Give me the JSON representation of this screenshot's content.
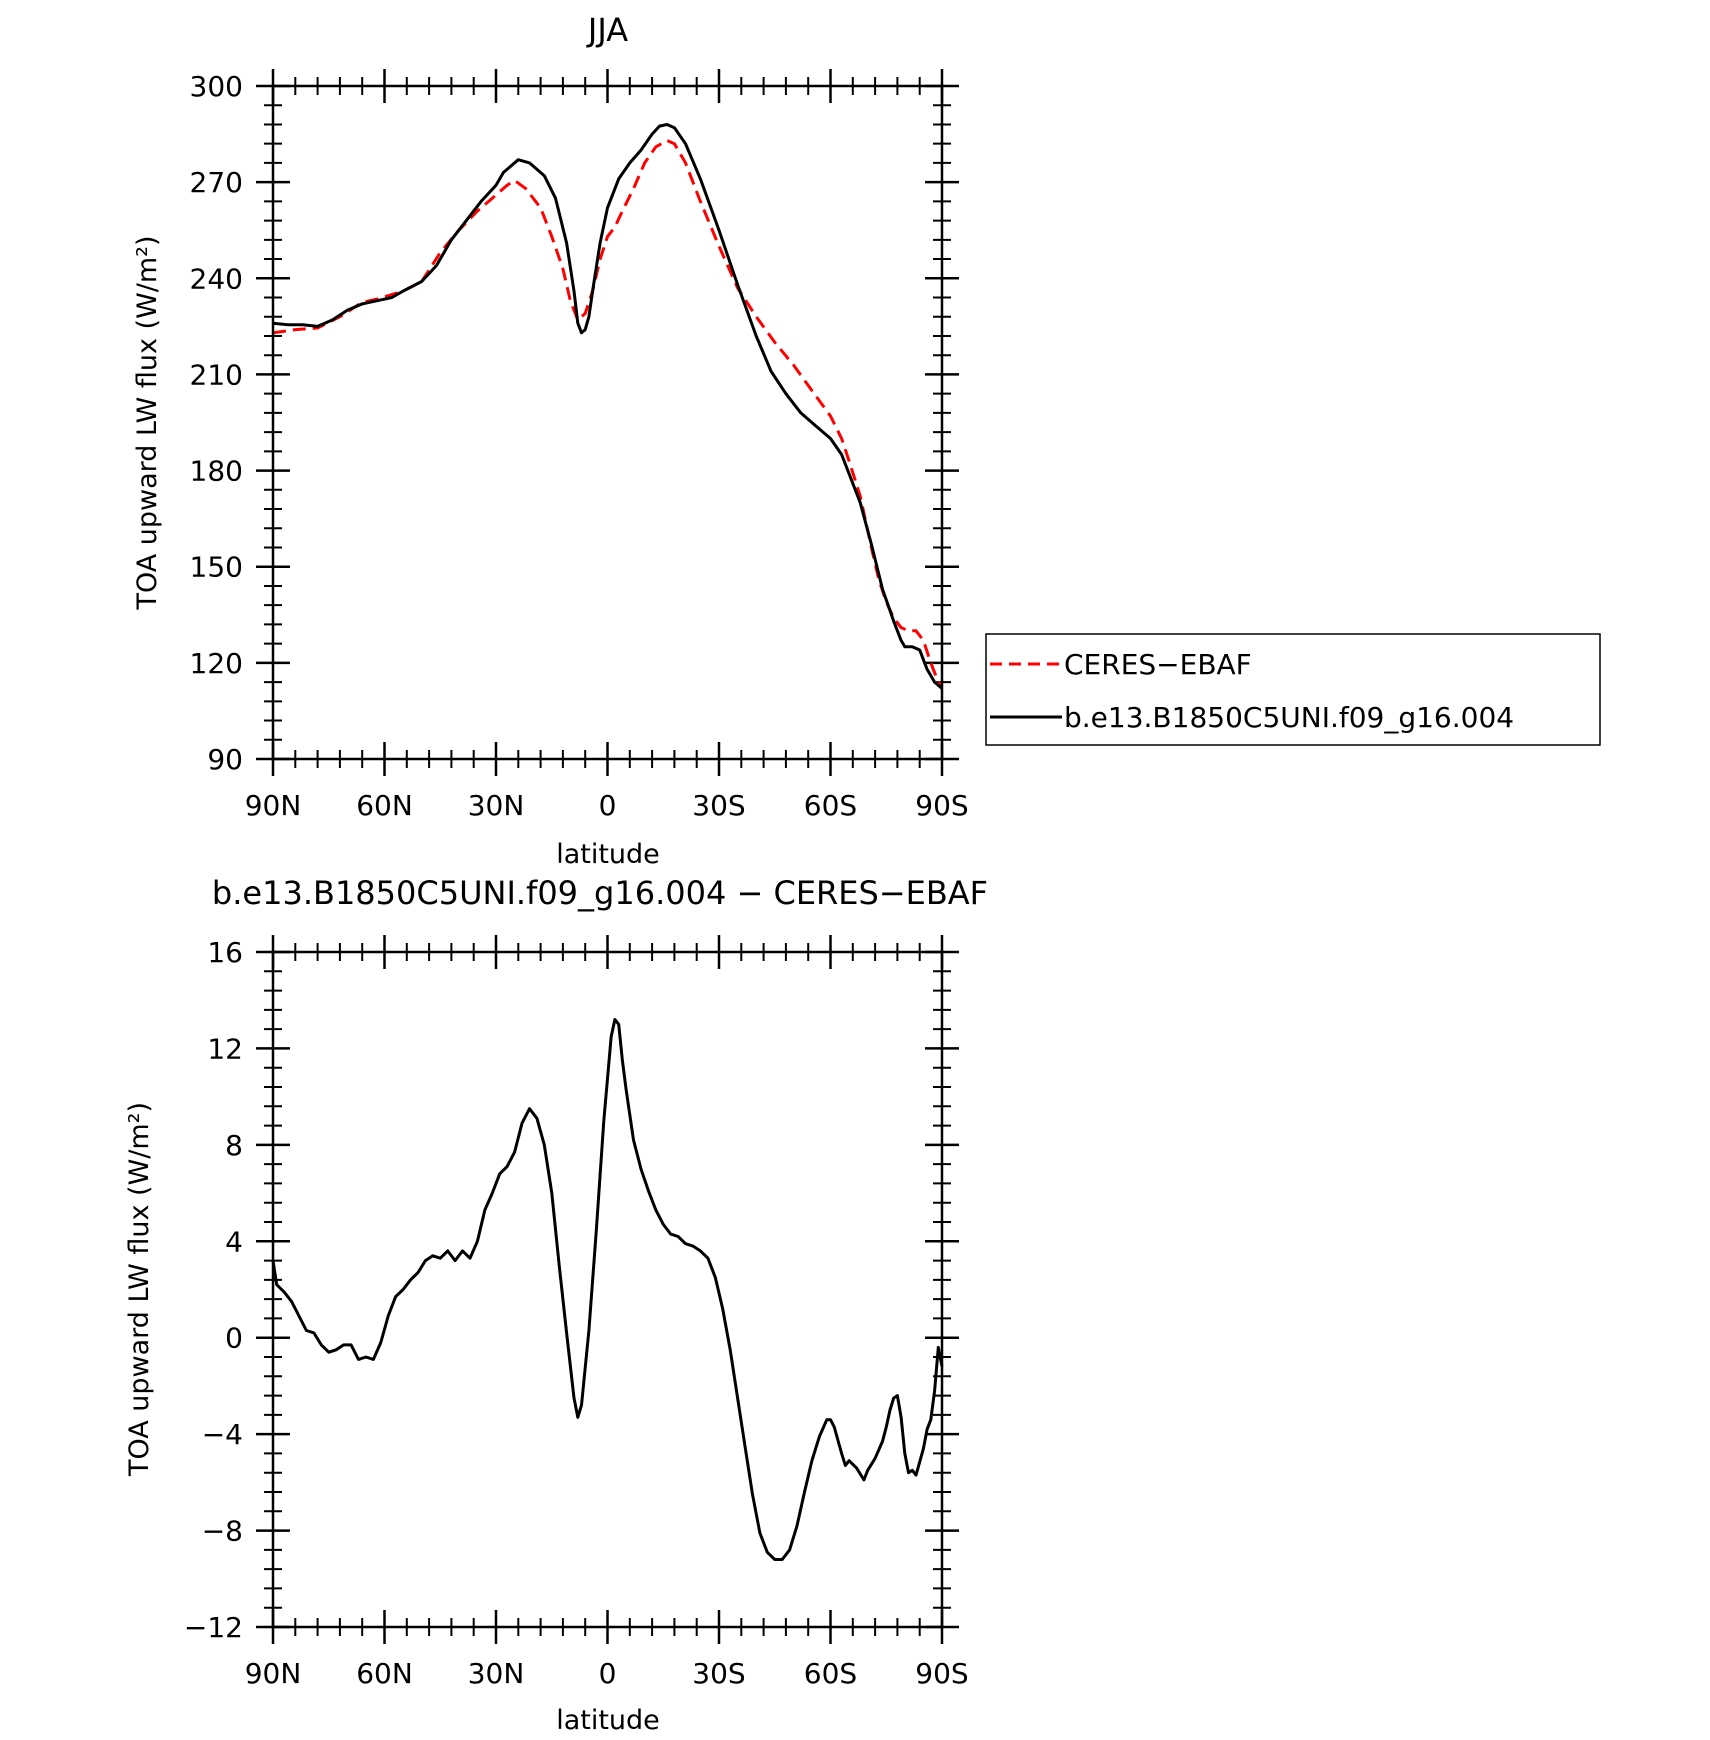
{
  "chart_data": [
    {
      "type": "line",
      "title": "JJA",
      "xlabel": "latitude",
      "ylabel": "TOA upward LW flux (W/m²)",
      "ylim": [
        90,
        300
      ],
      "xlim": [
        90,
        -90
      ],
      "y_ticks": [
        "90",
        "120",
        "150",
        "180",
        "210",
        "240",
        "270",
        "300"
      ],
      "x_tick_values": [
        90,
        60,
        30,
        0,
        -30,
        -60,
        -90
      ],
      "x_tick_labels": [
        "90N",
        "60N",
        "30N",
        "0",
        "30S",
        "60S",
        "90S"
      ],
      "legend": {
        "position": "right",
        "entries": [
          "CERES−EBAF",
          "b.e13.B1850C5UNI.f09_g16.004"
        ]
      },
      "series": [
        {
          "name": "CERES−EBAF",
          "color": "#ff0000",
          "style": "dashed",
          "points": [
            [
              90,
              223
            ],
            [
              84,
              224
            ],
            [
              78,
              224.5
            ],
            [
              72,
              228
            ],
            [
              66,
              232.5
            ],
            [
              62,
              233.5
            ],
            [
              55,
              236
            ],
            [
              50,
              239
            ],
            [
              45,
              248
            ],
            [
              40,
              255
            ],
            [
              35,
              261
            ],
            [
              30,
              266
            ],
            [
              27,
              269
            ],
            [
              25,
              270.5
            ],
            [
              22,
              268
            ],
            [
              18,
              262
            ],
            [
              15,
              253
            ],
            [
              12,
              243
            ],
            [
              10,
              233
            ],
            [
              8,
              227
            ],
            [
              6,
              229
            ],
            [
              4,
              236
            ],
            [
              2,
              246
            ],
            [
              0,
              253
            ],
            [
              -2,
              256
            ],
            [
              -4,
              261
            ],
            [
              -7,
              268
            ],
            [
              -10,
              276
            ],
            [
              -13,
              281
            ],
            [
              -16,
              283
            ],
            [
              -18,
              282
            ],
            [
              -21,
              276
            ],
            [
              -25,
              264
            ],
            [
              -30,
              250
            ],
            [
              -35,
              237
            ],
            [
              -40,
              228
            ],
            [
              -45,
              220
            ],
            [
              -50,
              213
            ],
            [
              -55,
              205
            ],
            [
              -60,
              197
            ],
            [
              -63,
              190
            ],
            [
              -65,
              183
            ],
            [
              -68,
              172
            ],
            [
              -71,
              156
            ],
            [
              -73,
              146
            ],
            [
              -75,
              139
            ],
            [
              -77,
              134
            ],
            [
              -79,
              131
            ],
            [
              -81,
              130
            ],
            [
              -83,
              130
            ],
            [
              -85,
              127
            ],
            [
              -87,
              120
            ],
            [
              -89,
              114
            ],
            [
              -90,
              113
            ]
          ]
        },
        {
          "name": "b.e13.B1850C5UNI.f09_g16.004",
          "color": "#000000",
          "style": "solid",
          "points": [
            [
              90,
              226
            ],
            [
              86,
              225.5
            ],
            [
              82,
              225.5
            ],
            [
              78,
              225
            ],
            [
              74,
              227
            ],
            [
              70,
              230
            ],
            [
              66,
              232
            ],
            [
              62,
              233
            ],
            [
              58,
              234
            ],
            [
              55,
              236
            ],
            [
              50,
              239
            ],
            [
              46,
              244
            ],
            [
              42,
              252
            ],
            [
              38,
              258
            ],
            [
              34,
              264
            ],
            [
              30,
              269
            ],
            [
              28,
              273
            ],
            [
              24,
              277
            ],
            [
              21,
              276
            ],
            [
              17,
              272
            ],
            [
              14,
              265
            ],
            [
              11,
              251
            ],
            [
              9,
              236
            ],
            [
              8,
              226
            ],
            [
              7,
              223
            ],
            [
              6,
              224
            ],
            [
              5,
              228
            ],
            [
              4,
              236
            ],
            [
              2,
              251
            ],
            [
              0,
              262
            ],
            [
              -3,
              271
            ],
            [
              -6,
              276
            ],
            [
              -9,
              280
            ],
            [
              -12,
              285
            ],
            [
              -14,
              287.5
            ],
            [
              -16,
              288
            ],
            [
              -18,
              287
            ],
            [
              -21,
              282
            ],
            [
              -25,
              271
            ],
            [
              -30,
              255
            ],
            [
              -35,
              238
            ],
            [
              -40,
              222
            ],
            [
              -44,
              211
            ],
            [
              -48,
              204
            ],
            [
              -52,
              198
            ],
            [
              -56,
              194
            ],
            [
              -60,
              190
            ],
            [
              -63,
              185
            ],
            [
              -65,
              179
            ],
            [
              -68,
              170
            ],
            [
              -71,
              157
            ],
            [
              -74,
              143
            ],
            [
              -77,
              133
            ],
            [
              -79,
              127
            ],
            [
              -80,
              125
            ],
            [
              -82,
              125
            ],
            [
              -84,
              124
            ],
            [
              -86,
              118
            ],
            [
              -88,
              114
            ],
            [
              -90,
              112
            ]
          ]
        }
      ]
    },
    {
      "type": "line",
      "title": "b.e13.B1850C5UNI.f09_g16.004 − CERES−EBAF",
      "xlabel": "latitude",
      "ylabel": "TOA upward LW flux (W/m²)",
      "ylim": [
        -12,
        16
      ],
      "xlim": [
        90,
        -90
      ],
      "y_ticks": [
        "−12",
        "−8",
        "−4",
        "0",
        "4",
        "8",
        "12",
        "16"
      ],
      "x_tick_values": [
        90,
        60,
        30,
        0,
        -30,
        -60,
        -90
      ],
      "x_tick_labels": [
        "90N",
        "60N",
        "30N",
        "0",
        "30S",
        "60S",
        "90S"
      ],
      "series": [
        {
          "color": "#000000",
          "style": "solid",
          "points": [
            [
              90,
              3.2
            ],
            [
              89,
              2.2
            ],
            [
              87,
              1.9
            ],
            [
              85,
              1.5
            ],
            [
              83,
              0.9
            ],
            [
              81,
              0.3
            ],
            [
              79,
              0.2
            ],
            [
              77,
              -0.3
            ],
            [
              75,
              -0.6
            ],
            [
              73,
              -0.5
            ],
            [
              71,
              -0.3
            ],
            [
              69,
              -0.3
            ],
            [
              67,
              -0.9
            ],
            [
              65,
              -0.8
            ],
            [
              63,
              -0.9
            ],
            [
              61,
              -0.2
            ],
            [
              59,
              0.9
            ],
            [
              57,
              1.7
            ],
            [
              55,
              2.0
            ],
            [
              53,
              2.4
            ],
            [
              51,
              2.7
            ],
            [
              49,
              3.2
            ],
            [
              47,
              3.4
            ],
            [
              45,
              3.3
            ],
            [
              43,
              3.6
            ],
            [
              41,
              3.2
            ],
            [
              39,
              3.6
            ],
            [
              37,
              3.3
            ],
            [
              35,
              4.0
            ],
            [
              33,
              5.3
            ],
            [
              31,
              6.0
            ],
            [
              29,
              6.8
            ],
            [
              27,
              7.1
            ],
            [
              25,
              7.7
            ],
            [
              23,
              8.9
            ],
            [
              21,
              9.5
            ],
            [
              19,
              9.1
            ],
            [
              17,
              8.0
            ],
            [
              15,
              6.0
            ],
            [
              13,
              3.0
            ],
            [
              11,
              0.2
            ],
            [
              9,
              -2.5
            ],
            [
              8,
              -3.3
            ],
            [
              7,
              -2.8
            ],
            [
              5,
              0.3
            ],
            [
              3,
              4.5
            ],
            [
              1,
              9.0
            ],
            [
              -1,
              12.5
            ],
            [
              -2,
              13.2
            ],
            [
              -3,
              13.0
            ],
            [
              -4,
              11.5
            ],
            [
              -5,
              10.3
            ],
            [
              -7,
              8.2
            ],
            [
              -9,
              7.0
            ],
            [
              -11,
              6.1
            ],
            [
              -13,
              5.3
            ],
            [
              -15,
              4.7
            ],
            [
              -17,
              4.3
            ],
            [
              -19,
              4.2
            ],
            [
              -21,
              3.9
            ],
            [
              -23,
              3.8
            ],
            [
              -25,
              3.6
            ],
            [
              -27,
              3.3
            ],
            [
              -29,
              2.5
            ],
            [
              -31,
              1.2
            ],
            [
              -33,
              -0.5
            ],
            [
              -35,
              -2.5
            ],
            [
              -37,
              -4.5
            ],
            [
              -39,
              -6.5
            ],
            [
              -41,
              -8.1
            ],
            [
              -43,
              -8.9
            ],
            [
              -45,
              -9.2
            ],
            [
              -47,
              -9.2
            ],
            [
              -49,
              -8.8
            ],
            [
              -51,
              -7.8
            ],
            [
              -53,
              -6.4
            ],
            [
              -55,
              -5.1
            ],
            [
              -57,
              -4.1
            ],
            [
              -59,
              -3.4
            ],
            [
              -60,
              -3.4
            ],
            [
              -61,
              -3.7
            ],
            [
              -63,
              -4.8
            ],
            [
              -64,
              -5.3
            ],
            [
              -65,
              -5.1
            ],
            [
              -67,
              -5.4
            ],
            [
              -69,
              -5.9
            ],
            [
              -70,
              -5.5
            ],
            [
              -72,
              -5.0
            ],
            [
              -74,
              -4.3
            ],
            [
              -75,
              -3.7
            ],
            [
              -76,
              -3.0
            ],
            [
              -77,
              -2.5
            ],
            [
              -78,
              -2.4
            ],
            [
              -79,
              -3.3
            ],
            [
              -80,
              -4.8
            ],
            [
              -81,
              -5.6
            ],
            [
              -82,
              -5.5
            ],
            [
              -83,
              -5.7
            ],
            [
              -85,
              -4.6
            ],
            [
              -86,
              -3.8
            ],
            [
              -87,
              -3.4
            ],
            [
              -88,
              -2.2
            ],
            [
              -89,
              -0.4
            ],
            [
              -90,
              -1.2
            ]
          ]
        }
      ]
    }
  ]
}
